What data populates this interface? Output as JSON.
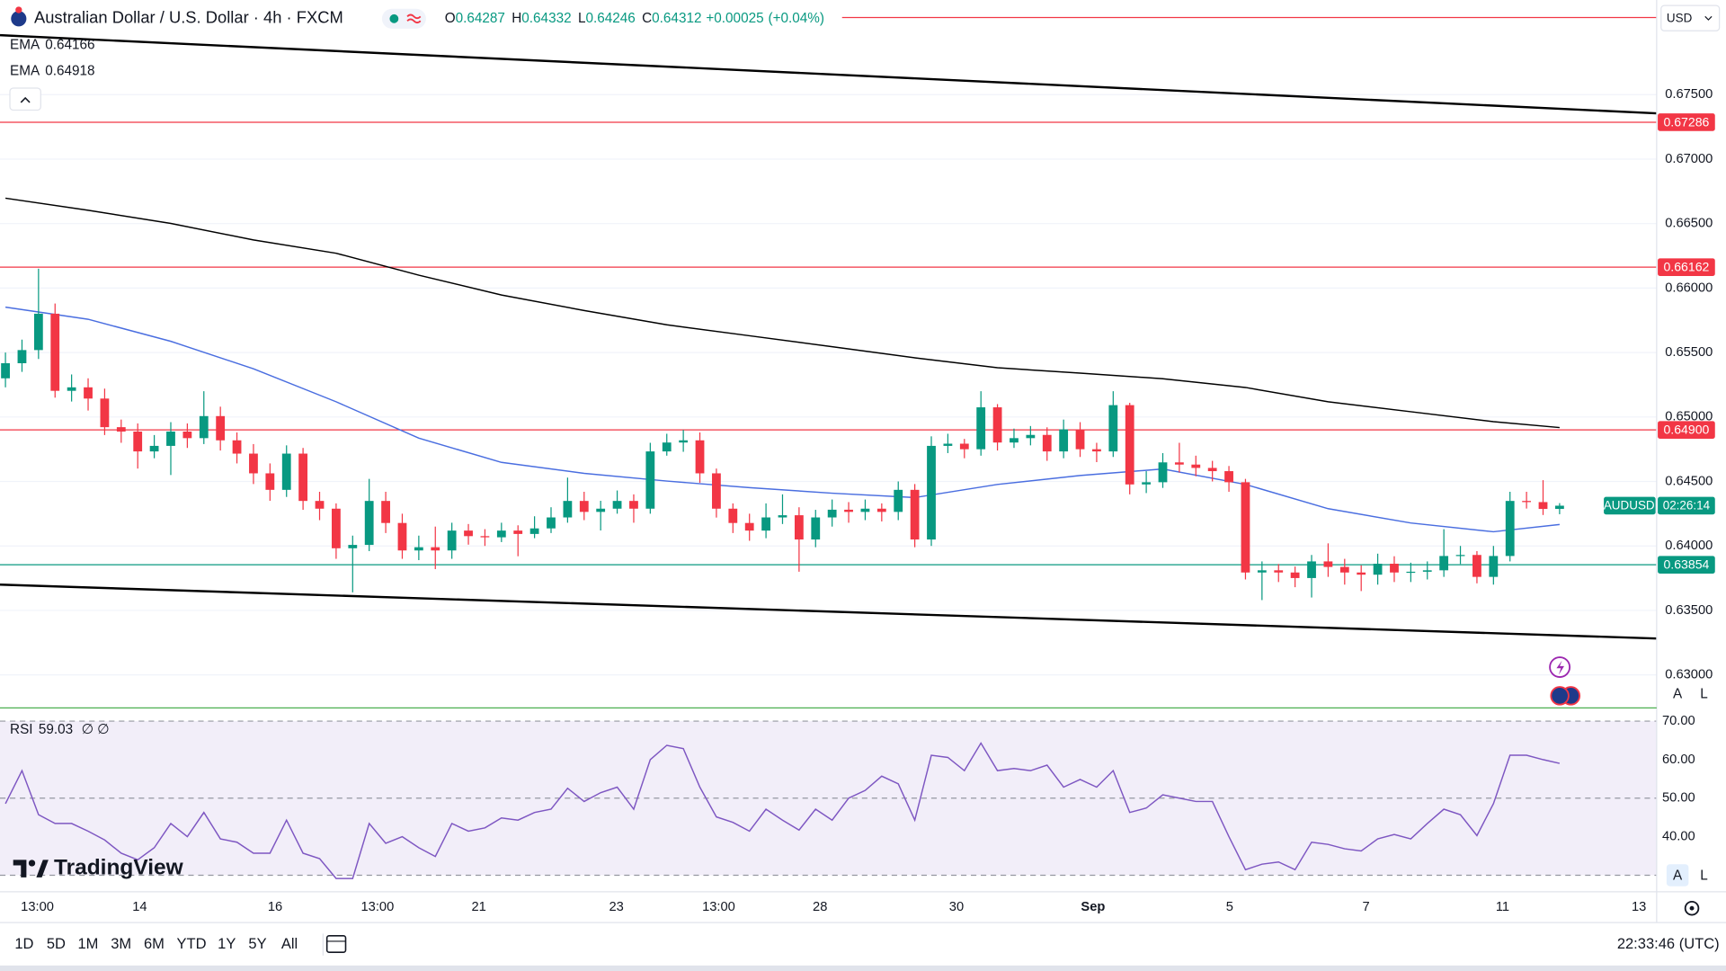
{
  "header": {
    "title": "Australian Dollar / U.S. Dollar · 4h · FXCM",
    "ohlc_labels": [
      "O",
      "H",
      "L",
      "C"
    ],
    "change": "+0.00025",
    "change_pct": "(+0.04%)"
  },
  "brand": "TradingView",
  "toolbar": {
    "ranges": [
      "1D",
      "5D",
      "1M",
      "3M",
      "6M",
      "YTD",
      "1Y",
      "5Y",
      "All"
    ],
    "clock": "22:33:46 (UTC)",
    "scale_buttons": [
      "A",
      "L"
    ]
  },
  "chart_data": [
    {
      "type": "candlestick",
      "name": "AUDUSD",
      "currency": "USD",
      "countdown": "02:26:14",
      "xlim": [
        -0.33,
        99.87
      ],
      "ylim": [
        0.62744,
        0.68234
      ],
      "yticks": [
        {
          "value": 0.63,
          "label": "0.63000"
        },
        {
          "value": 0.635,
          "label": "0.63500"
        },
        {
          "value": 0.64,
          "label": "0.64000"
        },
        {
          "value": 0.645,
          "label": "0.64500"
        },
        {
          "value": 0.65,
          "label": "0.65000"
        },
        {
          "value": 0.655,
          "label": "0.65500"
        },
        {
          "value": 0.66,
          "label": "0.66000"
        },
        {
          "value": 0.665,
          "label": "0.66500"
        },
        {
          "value": 0.67,
          "label": "0.67000"
        },
        {
          "value": 0.675,
          "label": "0.67500"
        }
      ],
      "grid": true,
      "up_color": "#089981",
      "down_color": "#f23645",
      "ohlc": [
        [
          0.653,
          0.655,
          0.6523,
          0.65417
        ],
        [
          0.65417,
          0.656,
          0.6535,
          0.65519
        ],
        [
          0.65519,
          0.6615,
          0.6545,
          0.65801
        ],
        [
          0.65801,
          0.6588,
          0.6515,
          0.65203
        ],
        [
          0.65203,
          0.6533,
          0.6512,
          0.6523
        ],
        [
          0.6523,
          0.653,
          0.6505,
          0.65143
        ],
        [
          0.65143,
          0.6522,
          0.6486,
          0.64921
        ],
        [
          0.64921,
          0.6498,
          0.648,
          0.64887
        ],
        [
          0.64887,
          0.6495,
          0.646,
          0.64733
        ],
        [
          0.64733,
          0.6486,
          0.6468,
          0.64776
        ],
        [
          0.64776,
          0.6496,
          0.6455,
          0.64887
        ],
        [
          0.64887,
          0.6495,
          0.6476,
          0.64836
        ],
        [
          0.64836,
          0.652,
          0.6479,
          0.65007
        ],
        [
          0.65007,
          0.6508,
          0.6474,
          0.64819
        ],
        [
          0.64819,
          0.6488,
          0.6464,
          0.64716
        ],
        [
          0.64716,
          0.6479,
          0.6448,
          0.64563
        ],
        [
          0.64563,
          0.6464,
          0.6435,
          0.64435
        ],
        [
          0.64435,
          0.6478,
          0.6438,
          0.64716
        ],
        [
          0.64716,
          0.6476,
          0.6428,
          0.64349
        ],
        [
          0.64349,
          0.6442,
          0.642,
          0.64289
        ],
        [
          0.64289,
          0.6433,
          0.639,
          0.63982
        ],
        [
          0.63982,
          0.6408,
          0.6364,
          0.64008
        ],
        [
          0.64008,
          0.6452,
          0.6396,
          0.64349
        ],
        [
          0.64349,
          0.6442,
          0.641,
          0.64178
        ],
        [
          0.64178,
          0.6425,
          0.639,
          0.63965
        ],
        [
          0.63965,
          0.6408,
          0.6389,
          0.6399
        ],
        [
          0.6399,
          0.6415,
          0.6382,
          0.63965
        ],
        [
          0.63965,
          0.6418,
          0.639,
          0.64119
        ],
        [
          0.64119,
          0.6417,
          0.6401,
          0.64076
        ],
        [
          0.64076,
          0.6413,
          0.64,
          0.64067
        ],
        [
          0.64067,
          0.6418,
          0.6403,
          0.64119
        ],
        [
          0.64119,
          0.6416,
          0.6392,
          0.64093
        ],
        [
          0.64093,
          0.6423,
          0.6406,
          0.64136
        ],
        [
          0.64136,
          0.643,
          0.641,
          0.64221
        ],
        [
          0.64221,
          0.6453,
          0.6418,
          0.64349
        ],
        [
          0.64349,
          0.6442,
          0.642,
          0.64264
        ],
        [
          0.64264,
          0.6435,
          0.6412,
          0.64289
        ],
        [
          0.64289,
          0.6443,
          0.6425,
          0.64349
        ],
        [
          0.64349,
          0.644,
          0.6418,
          0.64289
        ],
        [
          0.64289,
          0.648,
          0.6425,
          0.64733
        ],
        [
          0.64733,
          0.6487,
          0.647,
          0.64802
        ],
        [
          0.64802,
          0.649,
          0.6473,
          0.64819
        ],
        [
          0.64819,
          0.6488,
          0.6449,
          0.64563
        ],
        [
          0.64563,
          0.646,
          0.6422,
          0.64289
        ],
        [
          0.64289,
          0.6433,
          0.641,
          0.64178
        ],
        [
          0.64178,
          0.6425,
          0.6404,
          0.64119
        ],
        [
          0.64119,
          0.6433,
          0.6406,
          0.64221
        ],
        [
          0.64221,
          0.644,
          0.6417,
          0.64238
        ],
        [
          0.64238,
          0.643,
          0.638,
          0.6405
        ],
        [
          0.6405,
          0.6428,
          0.6399,
          0.64221
        ],
        [
          0.64221,
          0.6436,
          0.6415,
          0.64281
        ],
        [
          0.64281,
          0.6434,
          0.6418,
          0.64264
        ],
        [
          0.64264,
          0.6436,
          0.642,
          0.64289
        ],
        [
          0.64289,
          0.6433,
          0.6419,
          0.64264
        ],
        [
          0.64264,
          0.645,
          0.642,
          0.64435
        ],
        [
          0.64435,
          0.6448,
          0.6399,
          0.6405
        ],
        [
          0.6405,
          0.6485,
          0.64,
          0.64776
        ],
        [
          0.64776,
          0.6487,
          0.6472,
          0.64793
        ],
        [
          0.64793,
          0.6483,
          0.6468,
          0.6475
        ],
        [
          0.6475,
          0.652,
          0.647,
          0.65075
        ],
        [
          0.65075,
          0.651,
          0.6474,
          0.64802
        ],
        [
          0.64802,
          0.6491,
          0.6476,
          0.64836
        ],
        [
          0.64836,
          0.6493,
          0.6478,
          0.64861
        ],
        [
          0.64861,
          0.6492,
          0.6466,
          0.64733
        ],
        [
          0.64733,
          0.6498,
          0.6468,
          0.64904
        ],
        [
          0.64904,
          0.6496,
          0.6469,
          0.6475
        ],
        [
          0.6475,
          0.648,
          0.6465,
          0.64733
        ],
        [
          0.64733,
          0.652,
          0.6469,
          0.65092
        ],
        [
          0.65092,
          0.6511,
          0.644,
          0.64477
        ],
        [
          0.64477,
          0.6458,
          0.6441,
          0.64494
        ],
        [
          0.64494,
          0.6472,
          0.6445,
          0.64648
        ],
        [
          0.64648,
          0.648,
          0.6457,
          0.64631
        ],
        [
          0.64631,
          0.647,
          0.6454,
          0.64605
        ],
        [
          0.64605,
          0.6466,
          0.645,
          0.6458
        ],
        [
          0.6458,
          0.6462,
          0.6442,
          0.64494
        ],
        [
          0.64494,
          0.6452,
          0.6374,
          0.63794
        ],
        [
          0.63794,
          0.6388,
          0.6358,
          0.63811
        ],
        [
          0.63811,
          0.6386,
          0.6372,
          0.63794
        ],
        [
          0.63794,
          0.6384,
          0.6368,
          0.63751
        ],
        [
          0.63751,
          0.6393,
          0.636,
          0.6388
        ],
        [
          0.6388,
          0.6402,
          0.6376,
          0.63837
        ],
        [
          0.63837,
          0.639,
          0.637,
          0.63794
        ],
        [
          0.63794,
          0.6385,
          0.6365,
          0.63777
        ],
        [
          0.63777,
          0.6394,
          0.637,
          0.63862
        ],
        [
          0.63862,
          0.6392,
          0.6372,
          0.63794
        ],
        [
          0.63794,
          0.6387,
          0.6372,
          0.638
        ],
        [
          0.638,
          0.6388,
          0.6374,
          0.63811
        ],
        [
          0.63811,
          0.6413,
          0.6376,
          0.63922
        ],
        [
          0.63922,
          0.64,
          0.6386,
          0.6393
        ],
        [
          0.6393,
          0.6396,
          0.6371,
          0.6376
        ],
        [
          0.6376,
          0.64,
          0.637,
          0.63922
        ],
        [
          0.63922,
          0.6442,
          0.6388,
          0.64349
        ],
        [
          0.64349,
          0.6442,
          0.6429,
          0.6434
        ],
        [
          0.6434,
          0.6451,
          0.6424,
          0.64287
        ],
        [
          0.64287,
          0.64332,
          0.64246,
          0.64312
        ]
      ],
      "series": [
        {
          "name": "EMA",
          "color": "#4a6ee0",
          "x": [
            0,
            5,
            10,
            15,
            20,
            25,
            30,
            35,
            40,
            45,
            50,
            55,
            60,
            65,
            70,
            75,
            80,
            85,
            90,
            94
          ],
          "values": [
            0.65852,
            0.65758,
            0.65587,
            0.65374,
            0.65118,
            0.64836,
            0.64648,
            0.64563,
            0.64503,
            0.64452,
            0.64409,
            0.64375,
            0.64477,
            0.64546,
            0.64597,
            0.64477,
            0.64289,
            0.64178,
            0.6411,
            0.64166
          ]
        },
        {
          "name": "EMA",
          "color": "#000000",
          "x": [
            0,
            5,
            10,
            15,
            20,
            25,
            30,
            35,
            40,
            45,
            50,
            55,
            60,
            65,
            70,
            75,
            80,
            85,
            90,
            94
          ],
          "values": [
            0.66697,
            0.66603,
            0.66501,
            0.66373,
            0.6627,
            0.661,
            0.65946,
            0.65826,
            0.65715,
            0.6563,
            0.65545,
            0.65459,
            0.65382,
            0.6534,
            0.65297,
            0.65229,
            0.65118,
            0.65041,
            0.64964,
            0.64918
          ]
        }
      ],
      "trendlines": [
        {
          "x": [
            -0.33,
            99.87
          ],
          "values": [
            0.67961,
            0.67355
          ]
        },
        {
          "x": [
            -0.33,
            99.87
          ],
          "values": [
            0.637,
            0.63282
          ]
        }
      ],
      "levels": [
        {
          "value": 0.67286,
          "label": "0.67286",
          "color": "#f23645"
        },
        {
          "value": 0.66162,
          "label": "0.66162",
          "color": "#f23645"
        },
        {
          "value": 0.649,
          "label": "0.64900",
          "color": "#f23645"
        },
        {
          "value": 0.63854,
          "label": "0.63854",
          "color": "#089981"
        }
      ],
      "alert_line": {
        "value": 0.68098,
        "color": "#f23645"
      }
    },
    {
      "type": "line",
      "name": "RSI",
      "params": "∅ ∅",
      "color": "#7e57c2",
      "xlim": [
        -0.33,
        99.87
      ],
      "ylim": [
        25.71,
        72.86
      ],
      "yticks": [
        {
          "value": 40,
          "label": "40.00"
        },
        {
          "value": 50,
          "label": "50.00"
        },
        {
          "value": 60,
          "label": "60.00"
        },
        {
          "value": 70,
          "label": "70.00"
        }
      ],
      "band": [
        30,
        70
      ],
      "midline": 50,
      "xticks": [
        {
          "value": 1.93,
          "label": "13:00"
        },
        {
          "value": 8.12,
          "label": "14"
        },
        {
          "value": 16.31,
          "label": "16"
        },
        {
          "value": 22.5,
          "label": "13:00"
        },
        {
          "value": 28.63,
          "label": "21"
        },
        {
          "value": 36.95,
          "label": "23"
        },
        {
          "value": 43.14,
          "label": "13:00"
        },
        {
          "value": 49.27,
          "label": "28"
        },
        {
          "value": 57.52,
          "label": "30"
        },
        {
          "value": 65.78,
          "label": "Sep"
        },
        {
          "value": 74.04,
          "label": "5"
        },
        {
          "value": 82.29,
          "label": "7"
        },
        {
          "value": 90.55,
          "label": "11"
        },
        {
          "value": 98.8,
          "label": "13"
        }
      ],
      "values": [
        48.57,
        57.14,
        45.71,
        43.43,
        43.43,
        41.43,
        39.14,
        35.71,
        34.0,
        37.14,
        43.43,
        40.0,
        46.29,
        39.43,
        38.57,
        35.71,
        35.71,
        44.29,
        35.71,
        34.29,
        29.14,
        29.14,
        43.43,
        38.29,
        40.0,
        37.14,
        34.86,
        43.43,
        41.43,
        42.29,
        44.86,
        44.29,
        46.29,
        47.14,
        52.57,
        49.14,
        51.43,
        52.86,
        47.14,
        60.0,
        63.71,
        62.86,
        52.86,
        45.14,
        43.71,
        41.43,
        47.14,
        44.29,
        41.71,
        47.14,
        44.29,
        50.0,
        52.0,
        55.71,
        53.71,
        44.29,
        61.14,
        60.57,
        57.14,
        64.29,
        57.14,
        57.71,
        57.14,
        58.57,
        52.86,
        54.86,
        52.86,
        57.14,
        46.29,
        47.43,
        50.86,
        50.0,
        49.14,
        49.14,
        40.0,
        31.43,
        32.86,
        33.43,
        31.43,
        38.57,
        38.0,
        36.86,
        36.29,
        39.43,
        40.57,
        39.43,
        43.43,
        47.14,
        45.71,
        40.29,
        48.57,
        61.14,
        61.14,
        60.0,
        59.03
      ]
    }
  ]
}
